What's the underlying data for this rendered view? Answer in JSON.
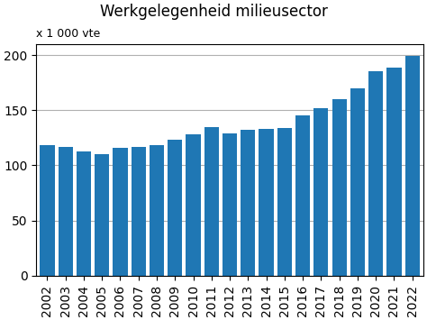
{
  "chart_data": {
    "type": "bar",
    "title": "Werkgelegenheid milieusector",
    "subtitle": "x 1 000 vte",
    "categories": [
      "2002",
      "2003",
      "2004",
      "2005",
      "2006",
      "2007",
      "2008",
      "2009",
      "2010",
      "2011",
      "2012",
      "2013",
      "2014",
      "2015",
      "2016",
      "2017",
      "2018",
      "2019",
      "2020",
      "2021",
      "2022"
    ],
    "values": [
      118,
      117,
      113,
      110,
      116,
      117,
      118,
      123,
      128,
      135,
      129,
      132,
      133,
      134,
      145,
      152,
      160,
      170,
      185,
      189,
      199
    ],
    "ylim": [
      0,
      210
    ],
    "yticks": [
      0,
      50,
      100,
      150,
      200
    ],
    "grid": true
  }
}
